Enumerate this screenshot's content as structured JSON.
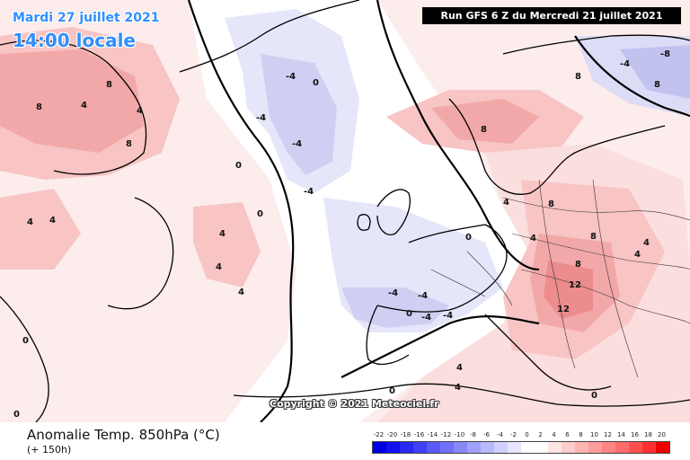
{
  "header": {
    "date": "Mardi 27 juillet 2021",
    "time": "14:00 locale",
    "run": "Run GFS 6 Z du Mercredi 21 juillet 2021"
  },
  "copyright": "Copyright © 2021 Meteociel.fr",
  "footer": {
    "parameter": "Anomalie Temp. 850hPa (°C)",
    "lead_time": "(+ 150h)"
  },
  "legend": {
    "ticks": [
      "-22",
      "-20",
      "-18",
      "-16",
      "-14",
      "-12",
      "-10",
      "-8",
      "-6",
      "-4",
      "-2",
      "0",
      "2",
      "4",
      "6",
      "8",
      "10",
      "12",
      "14",
      "16",
      "18",
      "20"
    ],
    "colors": [
      "#0000e6",
      "#1010f0",
      "#2828f5",
      "#4040f8",
      "#5a5af8",
      "#7070fa",
      "#8888fb",
      "#a0a0fc",
      "#b8b8fd",
      "#d0d0fe",
      "#e6e6ff",
      "#ffffff",
      "#ffffff",
      "#ffe4e4",
      "#ffcccc",
      "#ffb4b4",
      "#ff9c9c",
      "#ff8484",
      "#ff6c6c",
      "#ff5050",
      "#ff3030",
      "#f00000"
    ]
  },
  "colors": {
    "warm1": "#fbdede",
    "warm2": "#f8c4c4",
    "warm3": "#f2a8a8",
    "warm4": "#ec8c8c",
    "cold1": "#e4e4fa",
    "cold2": "#c8c8f2",
    "cold3": "#b0b0ea",
    "banner": "#000000",
    "title_blue": "#2f8fff"
  },
  "contour_labels": [
    "0",
    "4",
    "8",
    "12",
    "-4",
    "-8"
  ]
}
